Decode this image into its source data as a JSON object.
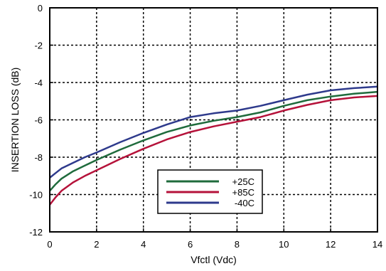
{
  "chart_data": {
    "type": "line",
    "title": "",
    "xlabel": "Vfctl (Vdc)",
    "ylabel": "INSERTION LOSS (dB)",
    "xlim": [
      0,
      14
    ],
    "ylim": [
      -12,
      0
    ],
    "xticks": [
      0,
      2,
      4,
      6,
      8,
      10,
      12,
      14
    ],
    "yticks": [
      0,
      -2,
      -4,
      -6,
      -8,
      -10,
      -12
    ],
    "grid": true,
    "legend_position": "lower-center",
    "series": [
      {
        "name": "+25C",
        "color": "#1f6b3c",
        "x": [
          0,
          0.25,
          0.5,
          1,
          1.5,
          2,
          3,
          4,
          5,
          6,
          7,
          8,
          9,
          10,
          11,
          12,
          13,
          14
        ],
        "y": [
          -9.8,
          -9.45,
          -9.15,
          -8.75,
          -8.45,
          -8.15,
          -7.6,
          -7.1,
          -6.65,
          -6.3,
          -6.05,
          -5.85,
          -5.6,
          -5.25,
          -4.95,
          -4.75,
          -4.6,
          -4.5
        ]
      },
      {
        "name": "+85C",
        "color": "#b5123a",
        "x": [
          0,
          0.25,
          0.5,
          1,
          1.5,
          2,
          3,
          4,
          5,
          6,
          7,
          8,
          9,
          10,
          11,
          12,
          13,
          14
        ],
        "y": [
          -10.55,
          -10.15,
          -9.8,
          -9.35,
          -9.0,
          -8.7,
          -8.1,
          -7.55,
          -7.05,
          -6.65,
          -6.35,
          -6.1,
          -5.85,
          -5.5,
          -5.2,
          -4.95,
          -4.8,
          -4.72
        ]
      },
      {
        "name": "-40C",
        "color": "#2e3a8c",
        "x": [
          0,
          0.25,
          0.5,
          1,
          1.5,
          2,
          3,
          4,
          5,
          6,
          7,
          8,
          9,
          10,
          11,
          12,
          13,
          14
        ],
        "y": [
          -9.1,
          -8.85,
          -8.6,
          -8.3,
          -8.0,
          -7.75,
          -7.2,
          -6.7,
          -6.25,
          -5.85,
          -5.65,
          -5.5,
          -5.25,
          -4.95,
          -4.65,
          -4.42,
          -4.3,
          -4.22
        ]
      }
    ]
  }
}
